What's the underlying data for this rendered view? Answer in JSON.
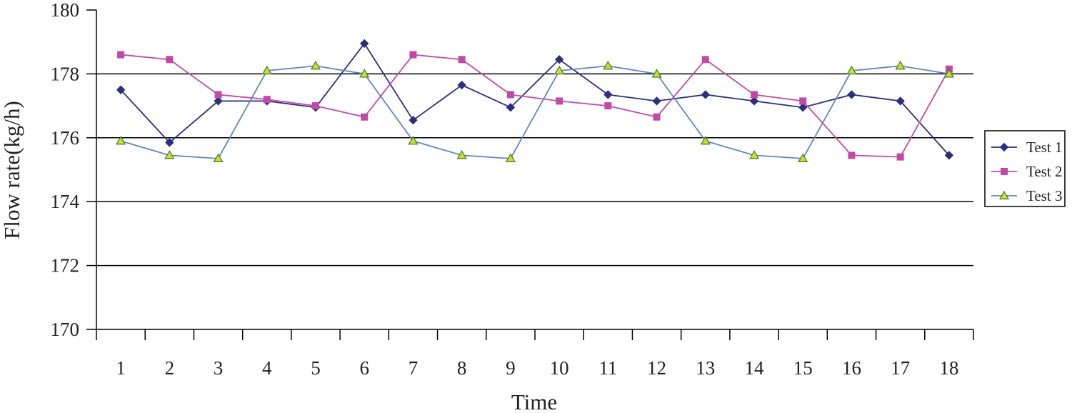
{
  "chart_data": {
    "type": "line",
    "title": "",
    "xlabel": "Time",
    "ylabel": "Flow rate(kg/h)",
    "ylim": [
      170,
      180
    ],
    "yticks": [
      170,
      172,
      174,
      176,
      178,
      180
    ],
    "categories": [
      "1",
      "2",
      "3",
      "4",
      "5",
      "6",
      "7",
      "8",
      "9",
      "10",
      "11",
      "12",
      "13",
      "14",
      "15",
      "16",
      "17",
      "18"
    ],
    "grid": true,
    "legend_position": "right",
    "series": [
      {
        "name": "Test 1",
        "color": "#2b2f7e",
        "marker": "diamond",
        "values": [
          177.5,
          175.85,
          177.15,
          177.15,
          176.95,
          178.95,
          176.55,
          177.65,
          176.95,
          178.45,
          177.35,
          177.15,
          177.35,
          177.15,
          176.95,
          177.35,
          177.15,
          175.45
        ]
      },
      {
        "name": "Test 2",
        "color": "#c24aa6",
        "marker": "square",
        "values": [
          178.6,
          178.45,
          177.35,
          177.2,
          177.0,
          176.65,
          178.6,
          178.45,
          177.35,
          177.15,
          177.0,
          176.65,
          178.45,
          177.35,
          177.15,
          175.45,
          175.4,
          178.15
        ]
      },
      {
        "name": "Test 3",
        "color": "#5b87c4",
        "marker": "triangle",
        "marker_fill": "#c8e030",
        "values": [
          175.9,
          175.45,
          175.35,
          178.1,
          178.25,
          178.0,
          175.9,
          175.45,
          175.35,
          178.1,
          178.25,
          178.0,
          175.9,
          175.45,
          175.35,
          178.1,
          178.25,
          178.0
        ]
      }
    ]
  }
}
